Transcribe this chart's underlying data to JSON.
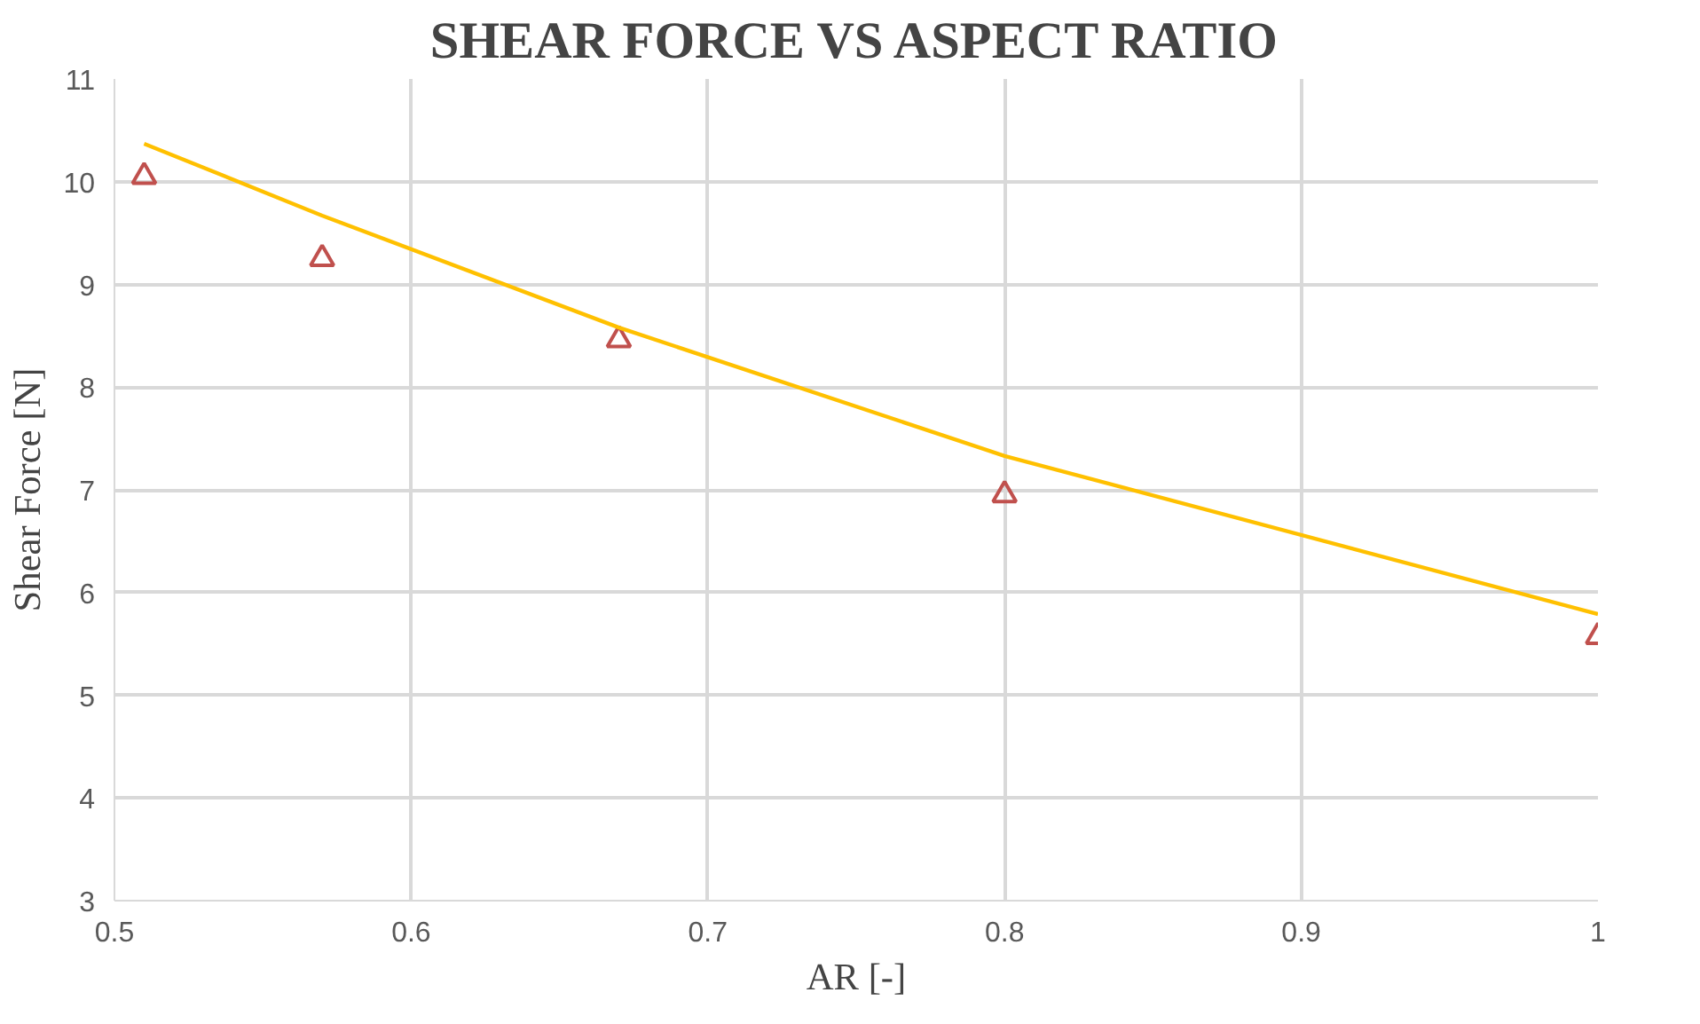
{
  "chart_data": {
    "type": "scatter",
    "title": "SHEAR FORCE VS ASPECT RATIO",
    "xlabel": "AR [-]",
    "ylabel": "Shear Force [N]",
    "xlim": [
      0.5,
      1
    ],
    "xticks": [
      0.5,
      0.6,
      0.7,
      0.8,
      0.9,
      1
    ],
    "ylim": [
      3,
      11
    ],
    "yticks": [
      3,
      4,
      5,
      6,
      7,
      8,
      9,
      10,
      11
    ],
    "grid": true,
    "series": [
      {
        "color": "#c0504d",
        "marker": "triangle",
        "x": [
          0.51,
          0.57,
          0.67,
          0.8,
          1.0
        ],
        "values": [
          10.05,
          9.25,
          8.46,
          6.95,
          5.57
        ]
      },
      {
        "type": "line",
        "color": "#ffc000",
        "marker": "none",
        "line_style": "solid",
        "x": [
          0.51,
          0.57,
          0.67,
          0.8,
          1.0
        ],
        "values": [
          10.37,
          9.67,
          8.58,
          7.33,
          5.79
        ]
      }
    ]
  }
}
